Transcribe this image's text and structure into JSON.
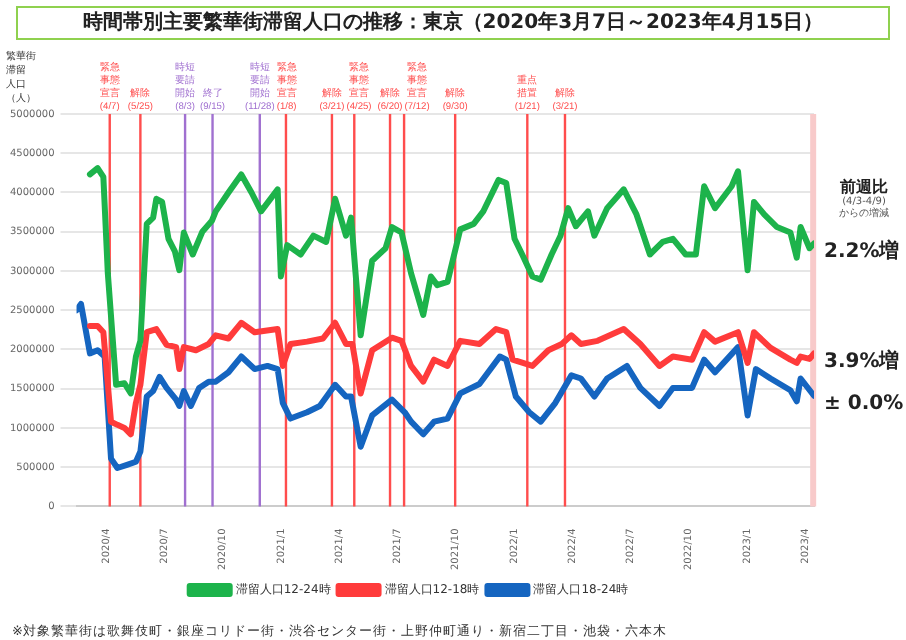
{
  "chart_data": {
    "type": "line",
    "title": "時間帯別主要繁華街滞留人口の推移：東京（2020年3月7日～2023年4月15日）",
    "ylabel": "繁華街滞留人口（人）",
    "xlim": [
      "2020-02-15",
      "2023-04-15"
    ],
    "ylim": [
      0,
      5000000
    ],
    "yticks": [
      0,
      500000,
      1000000,
      1500000,
      2000000,
      2500000,
      3000000,
      3500000,
      4000000,
      4500000,
      5000000
    ],
    "xticks": [
      {
        "value": "2020-04-01",
        "label": "2020/4"
      },
      {
        "value": "2020-07-01",
        "label": "2020/7"
      },
      {
        "value": "2020-10-01",
        "label": "2020/10"
      },
      {
        "value": "2021-01-01",
        "label": "2021/1"
      },
      {
        "value": "2021-04-01",
        "label": "2021/4"
      },
      {
        "value": "2021-07-01",
        "label": "2021/7"
      },
      {
        "value": "2021-10-01",
        "label": "2021/10"
      },
      {
        "value": "2022-01-01",
        "label": "2022/1"
      },
      {
        "value": "2022-04-01",
        "label": "2022/4"
      },
      {
        "value": "2022-07-01",
        "label": "2022/7"
      },
      {
        "value": "2022-10-01",
        "label": "2022/10"
      },
      {
        "value": "2023-01-01",
        "label": "2023/1"
      },
      {
        "value": "2023-04-01",
        "label": "2023/4"
      }
    ],
    "grid": "y",
    "legend": "bottom",
    "marker": "none",
    "line_style": "solid",
    "series": [
      {
        "name": "滞留人口12-24時",
        "color": "#1db34b",
        "x": [
          "2020-03-07",
          "2020-03-19",
          "2020-03-28",
          "2020-04-04",
          "2020-04-17",
          "2020-04-30",
          "2020-05-10",
          "2020-05-18",
          "2020-05-25",
          "2020-06-04",
          "2020-06-14",
          "2020-06-19",
          "2020-06-28",
          "2020-07-08",
          "2020-07-18",
          "2020-07-25",
          "2020-08-01",
          "2020-08-15",
          "2020-08-30",
          "2020-09-14",
          "2020-09-20",
          "2020-10-10",
          "2020-10-30",
          "2020-11-15",
          "2020-11-30",
          "2020-12-26",
          "2020-12-31",
          "2021-01-10",
          "2021-01-31",
          "2021-02-20",
          "2021-03-12",
          "2021-03-26",
          "2021-04-12",
          "2021-04-20",
          "2021-04-27",
          "2021-05-05",
          "2021-05-23",
          "2021-06-13",
          "2021-06-23",
          "2021-07-08",
          "2021-07-23",
          "2021-08-11",
          "2021-08-23",
          "2021-09-02",
          "2021-09-18",
          "2021-10-08",
          "2021-10-29",
          "2021-11-13",
          "2021-12-07",
          "2021-12-19",
          "2022-01-01",
          "2022-01-13",
          "2022-01-29",
          "2022-02-11",
          "2022-02-28",
          "2022-03-14",
          "2022-03-26",
          "2022-04-07",
          "2022-04-26",
          "2022-05-06",
          "2022-05-26",
          "2022-06-21",
          "2022-07-11",
          "2022-08-01",
          "2022-08-21",
          "2022-09-06",
          "2022-09-26",
          "2022-10-12",
          "2022-10-25",
          "2022-11-11",
          "2022-12-07",
          "2022-12-17",
          "2023-01-01",
          "2023-01-11",
          "2023-01-27",
          "2023-02-16",
          "2023-03-09",
          "2023-03-19",
          "2023-03-25",
          "2023-04-08",
          "2023-04-15"
        ],
        "values": [
          4230000,
          4310000,
          4200000,
          2970000,
          1550000,
          1570000,
          1440000,
          1910000,
          2110000,
          3600000,
          3680000,
          3920000,
          3880000,
          3410000,
          3250000,
          3010000,
          3490000,
          3210000,
          3500000,
          3640000,
          3760000,
          4000000,
          4230000,
          4000000,
          3760000,
          4040000,
          2930000,
          3330000,
          3210000,
          3450000,
          3370000,
          3920000,
          3450000,
          3680000,
          2970000,
          2180000,
          3130000,
          3290000,
          3560000,
          3490000,
          2970000,
          2440000,
          2930000,
          2820000,
          2860000,
          3530000,
          3600000,
          3760000,
          4160000,
          4120000,
          3410000,
          3210000,
          2930000,
          2890000,
          3210000,
          3450000,
          3800000,
          3570000,
          3760000,
          3450000,
          3800000,
          4040000,
          3720000,
          3210000,
          3370000,
          3410000,
          3210000,
          3210000,
          4080000,
          3800000,
          4080000,
          4270000,
          3010000,
          3880000,
          3720000,
          3560000,
          3490000,
          3170000,
          3560000,
          3290000,
          3350000
        ]
      },
      {
        "name": "滞留人口12-18時",
        "color": "#ff3b3b",
        "x": [
          "2020-03-07",
          "2020-03-19",
          "2020-03-28",
          "2020-04-09",
          "2020-04-19",
          "2020-04-30",
          "2020-05-10",
          "2020-05-18",
          "2020-05-25",
          "2020-06-04",
          "2020-06-19",
          "2020-07-05",
          "2020-07-20",
          "2020-07-25",
          "2020-08-01",
          "2020-08-20",
          "2020-09-09",
          "2020-09-20",
          "2020-10-10",
          "2020-10-30",
          "2020-11-20",
          "2020-12-26",
          "2021-01-03",
          "2021-01-15",
          "2021-02-10",
          "2021-03-07",
          "2021-03-26",
          "2021-04-12",
          "2021-04-22",
          "2021-05-05",
          "2021-05-23",
          "2021-06-23",
          "2021-07-08",
          "2021-07-23",
          "2021-08-11",
          "2021-08-28",
          "2021-09-18",
          "2021-10-08",
          "2021-11-07",
          "2021-12-03",
          "2021-12-19",
          "2021-12-29",
          "2022-01-29",
          "2022-02-23",
          "2022-03-16",
          "2022-03-31",
          "2022-04-15",
          "2022-05-11",
          "2022-06-21",
          "2022-07-17",
          "2022-08-16",
          "2022-09-06",
          "2022-10-06",
          "2022-10-25",
          "2022-11-11",
          "2022-12-17",
          "2023-01-01",
          "2023-01-11",
          "2023-02-06",
          "2023-03-09",
          "2023-03-19",
          "2023-03-25",
          "2023-04-08",
          "2023-04-15"
        ],
        "values": [
          2300000,
          2300000,
          2220000,
          1080000,
          1040000,
          1000000,
          920000,
          1320000,
          1550000,
          2220000,
          2260000,
          2060000,
          2030000,
          1750000,
          2030000,
          1990000,
          2070000,
          2180000,
          2140000,
          2340000,
          2220000,
          2260000,
          1790000,
          2070000,
          2100000,
          2140000,
          2340000,
          2070000,
          2070000,
          1440000,
          1990000,
          2150000,
          2110000,
          1790000,
          1590000,
          1870000,
          1790000,
          2110000,
          2070000,
          2260000,
          2220000,
          1870000,
          1790000,
          1990000,
          2070000,
          2180000,
          2070000,
          2110000,
          2260000,
          2070000,
          1790000,
          1910000,
          1870000,
          2220000,
          2100000,
          2220000,
          1830000,
          2220000,
          2020000,
          1870000,
          1830000,
          1910000,
          1880000,
          1950000
        ]
      },
      {
        "name": "滞留人口18-24時",
        "color": "#1565c0",
        "x": [
          "2020-02-15",
          "2020-02-22",
          "2020-03-07",
          "2020-03-19",
          "2020-03-30",
          "2020-04-09",
          "2020-04-19",
          "2020-05-04",
          "2020-05-18",
          "2020-05-25",
          "2020-06-04",
          "2020-06-14",
          "2020-06-24",
          "2020-07-05",
          "2020-07-20",
          "2020-07-25",
          "2020-08-01",
          "2020-08-12",
          "2020-08-25",
          "2020-09-09",
          "2020-09-20",
          "2020-10-10",
          "2020-10-30",
          "2020-11-20",
          "2020-12-10",
          "2020-12-26",
          "2021-01-03",
          "2021-01-15",
          "2021-02-10",
          "2021-03-02",
          "2021-03-26",
          "2021-04-12",
          "2021-04-20",
          "2021-05-05",
          "2021-05-23",
          "2021-06-23",
          "2021-07-13",
          "2021-07-23",
          "2021-08-11",
          "2021-08-28",
          "2021-09-18",
          "2021-10-08",
          "2021-11-07",
          "2021-12-09",
          "2021-12-19",
          "2022-01-03",
          "2022-01-24",
          "2022-02-11",
          "2022-03-06",
          "2022-03-31",
          "2022-04-15",
          "2022-05-06",
          "2022-05-26",
          "2022-06-26",
          "2022-07-17",
          "2022-08-16",
          "2022-09-06",
          "2022-10-06",
          "2022-10-25",
          "2022-11-11",
          "2022-12-17",
          "2023-01-01",
          "2023-01-14",
          "2023-02-06",
          "2023-03-09",
          "2023-03-19",
          "2023-03-25",
          "2023-04-15"
        ],
        "values": [
          2500000,
          2580000,
          1950000,
          1990000,
          1910000,
          610000,
          490000,
          530000,
          570000,
          700000,
          1400000,
          1470000,
          1650000,
          1510000,
          1360000,
          1280000,
          1470000,
          1280000,
          1510000,
          1590000,
          1590000,
          1710000,
          1910000,
          1750000,
          1790000,
          1750000,
          1320000,
          1120000,
          1200000,
          1280000,
          1550000,
          1400000,
          1400000,
          760000,
          1160000,
          1360000,
          1200000,
          1080000,
          920000,
          1080000,
          1120000,
          1440000,
          1560000,
          1910000,
          1870000,
          1400000,
          1200000,
          1080000,
          1320000,
          1670000,
          1630000,
          1400000,
          1630000,
          1790000,
          1510000,
          1280000,
          1510000,
          1510000,
          1870000,
          1710000,
          2030000,
          1160000,
          1750000,
          1630000,
          1480000,
          1340000,
          1630000,
          1410000
        ]
      }
    ],
    "ref_lines": [
      {
        "axis": "x",
        "value": "2020-04-07",
        "label": "緊急事態宣言(4/7)",
        "color": "#ff4d4d"
      },
      {
        "axis": "x",
        "value": "2020-05-25",
        "label": "解除(5/25)",
        "color": "#ff4d4d"
      },
      {
        "axis": "x",
        "value": "2020-08-03",
        "label": "時短要請開始(8/3)",
        "color": "#a070d0"
      },
      {
        "axis": "x",
        "value": "2020-09-15",
        "label": "終了(9/15)",
        "color": "#a070d0"
      },
      {
        "axis": "x",
        "value": "2020-11-28",
        "label": "時短要請開始(11/28)",
        "color": "#a070d0"
      },
      {
        "axis": "x",
        "value": "2021-01-08",
        "label": "緊急事態宣言(1/8)",
        "color": "#ff4d4d"
      },
      {
        "axis": "x",
        "value": "2021-03-21",
        "label": "解除(3/21)",
        "color": "#ff4d4d"
      },
      {
        "axis": "x",
        "value": "2021-04-25",
        "label": "緊急事態宣言(4/25)",
        "color": "#ff4d4d"
      },
      {
        "axis": "x",
        "value": "2021-06-20",
        "label": "解除(6/20)",
        "color": "#ff4d4d"
      },
      {
        "axis": "x",
        "value": "2021-07-12",
        "label": "緊急事態宣言(7/12)",
        "color": "#ff4d4d"
      },
      {
        "axis": "x",
        "value": "2021-09-30",
        "label": "解除(9/30)",
        "color": "#ff4d4d"
      },
      {
        "axis": "x",
        "value": "2022-01-21",
        "label": "重点措置(1/21)",
        "color": "#ff4d4d"
      },
      {
        "axis": "x",
        "value": "2022-03-21",
        "label": "解除(3/21)",
        "color": "#ff4d4d"
      }
    ],
    "bands": [
      {
        "axis": "x",
        "from": "2023-04-09",
        "to": "2023-04-15",
        "color": "#f8caca"
      }
    ],
    "annotations": [
      "前週比",
      "(4/3-4/9)からの増減",
      {
        "text": "2.2%増",
        "x": "2023-04-15",
        "y": 3350000
      },
      {
        "text": "3.9%増",
        "x": "2023-04-15",
        "y": 1950000
      },
      {
        "text": "± 0.0%",
        "x": "2023-04-15",
        "y": 1410000
      },
      "※対象繁華街は歌舞伎町・銀座コリドー街・渋谷センター街・上野仲町通り・新宿二丁目・池袋・六本木"
    ]
  }
}
